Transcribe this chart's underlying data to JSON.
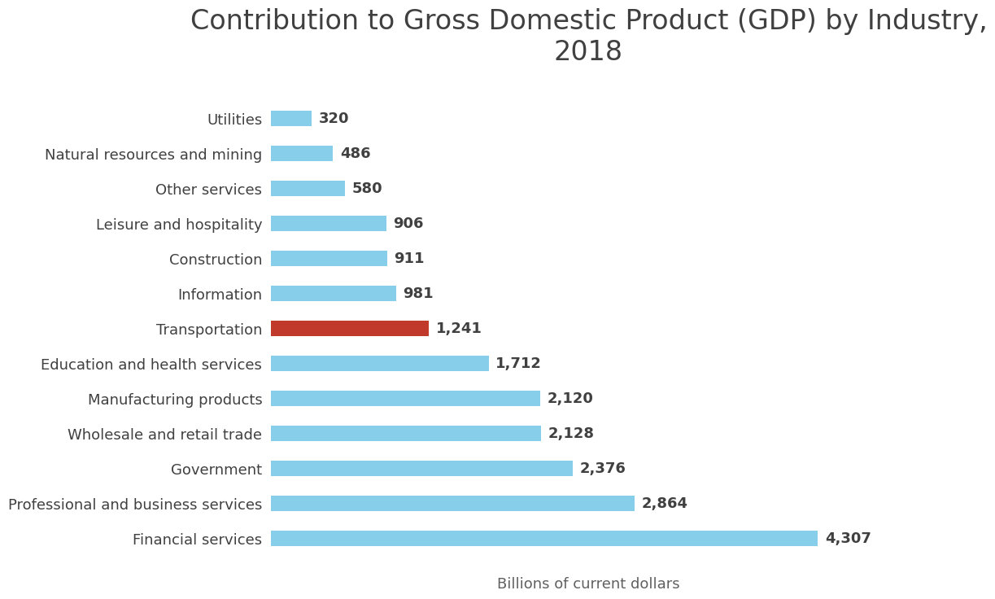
{
  "title": "Contribution to Gross Domestic Product (GDP) by Industry,\n2018",
  "xlabel": "Billions of current dollars",
  "categories": [
    "Financial services",
    "Professional and business services",
    "Government",
    "Wholesale and retail trade",
    "Manufacturing products",
    "Education and health services",
    "Transportation",
    "Information",
    "Construction",
    "Leisure and hospitality",
    "Other services",
    "Natural resources and mining",
    "Utilities"
  ],
  "values": [
    4307,
    2864,
    2376,
    2128,
    2120,
    1712,
    1241,
    981,
    911,
    906,
    580,
    486,
    320
  ],
  "bar_colors": [
    "#87CEEB",
    "#87CEEB",
    "#87CEEB",
    "#87CEEB",
    "#87CEEB",
    "#87CEEB",
    "#C0392B",
    "#87CEEB",
    "#87CEEB",
    "#87CEEB",
    "#87CEEB",
    "#87CEEB",
    "#87CEEB"
  ],
  "value_labels": [
    "4,307",
    "2,864",
    "2,376",
    "2,128",
    "2,120",
    "1,712",
    "1,241",
    "981",
    "911",
    "906",
    "580",
    "486",
    "320"
  ],
  "title_fontsize": 24,
  "label_fontsize": 13,
  "value_fontsize": 13,
  "xlabel_fontsize": 13,
  "background_color": "#ffffff",
  "bar_height": 0.45,
  "xlim": [
    0,
    5000
  ],
  "text_color": "#404040",
  "xlabel_color": "#606060"
}
